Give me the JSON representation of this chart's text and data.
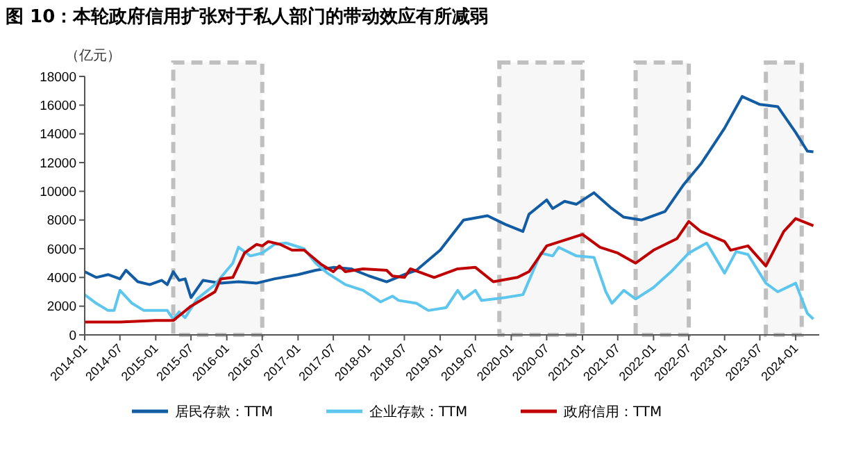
{
  "chart_data": {
    "type": "line",
    "title": "图 10：本轮政府信用扩张对于私人部门的带动效应有所减弱",
    "ylabel": "（亿元）",
    "xlim": [
      "2014-01",
      "2024-05"
    ],
    "xticks": [
      "2014-01",
      "2014-07",
      "2015-01",
      "2015-07",
      "2016-01",
      "2016-07",
      "2017-01",
      "2017-07",
      "2018-01",
      "2018-07",
      "2019-01",
      "2019-07",
      "2020-01",
      "2020-07",
      "2021-01",
      "2021-07",
      "2022-01",
      "2022-07",
      "2023-01",
      "2023-07",
      "2024-01"
    ],
    "ylim": [
      0,
      18000
    ],
    "yticks": [
      0,
      2000,
      4000,
      6000,
      8000,
      10000,
      12000,
      14000,
      16000,
      18000
    ],
    "grid": false,
    "legend": "bottom",
    "bands": [
      {
        "axis": "x",
        "from": "2015-04",
        "to": "2016-07",
        "color": "#bfbfbf"
      },
      {
        "axis": "x",
        "from": "2019-11",
        "to": "2021-01",
        "color": "#bfbfbf"
      },
      {
        "axis": "x",
        "from": "2021-10",
        "to": "2022-07",
        "color": "#bfbfbf"
      },
      {
        "axis": "x",
        "from": "2023-08",
        "to": "2024-02",
        "color": "#bfbfbf"
      }
    ],
    "series": [
      {
        "name": "居民存款：TTM",
        "color": "#125ca4",
        "x": [
          "2014-01",
          "2014-03",
          "2014-05",
          "2014-07",
          "2014-08",
          "2014-10",
          "2014-12",
          "2015-02",
          "2015-03",
          "2015-04",
          "2015-05",
          "2015-06",
          "2015-07",
          "2015-09",
          "2015-12",
          "2016-03",
          "2016-06",
          "2016-09",
          "2017-01",
          "2017-04",
          "2017-07",
          "2017-10",
          "2018-01",
          "2018-04",
          "2018-07",
          "2018-09",
          "2019-01",
          "2019-05",
          "2019-09",
          "2019-12",
          "2020-03",
          "2020-04",
          "2020-07",
          "2020-08",
          "2020-10",
          "2020-12",
          "2021-03",
          "2021-06",
          "2021-08",
          "2021-11",
          "2022-03",
          "2022-06",
          "2022-07",
          "2022-09",
          "2023-01",
          "2023-04",
          "2023-07",
          "2023-10",
          "2024-01",
          "2024-03",
          "2024-04"
        ],
        "values": [
          4400,
          4000,
          4200,
          3900,
          4500,
          3700,
          3500,
          3800,
          3500,
          4400,
          3800,
          3900,
          2600,
          3800,
          3600,
          3700,
          3600,
          3900,
          4200,
          4500,
          4700,
          4600,
          4100,
          3700,
          4200,
          4500,
          5900,
          8000,
          8300,
          7700,
          7200,
          8400,
          9400,
          8800,
          9300,
          9100,
          9900,
          8800,
          8200,
          8000,
          8600,
          10400,
          10900,
          11900,
          14400,
          16600,
          16050,
          15900,
          14100,
          12800,
          12750
        ]
      },
      {
        "name": "企业存款：TTM",
        "color": "#5cc6ee",
        "x": [
          "2014-01",
          "2014-03",
          "2014-05",
          "2014-06",
          "2014-07",
          "2014-09",
          "2014-11",
          "2015-03",
          "2015-04",
          "2015-05",
          "2015-06",
          "2015-08",
          "2015-11",
          "2016-01",
          "2016-02",
          "2016-03",
          "2016-05",
          "2016-07",
          "2016-09",
          "2016-11",
          "2017-02",
          "2017-04",
          "2017-06",
          "2017-09",
          "2017-12",
          "2018-03",
          "2018-05",
          "2018-06",
          "2018-09",
          "2018-11",
          "2019-02",
          "2019-04",
          "2019-05",
          "2019-07",
          "2019-08",
          "2019-12",
          "2020-03",
          "2020-06",
          "2020-08",
          "2020-09",
          "2020-12",
          "2021-03",
          "2021-05",
          "2021-06",
          "2021-08",
          "2021-10",
          "2022-01",
          "2022-04",
          "2022-07",
          "2022-10",
          "2023-01",
          "2023-03",
          "2023-05",
          "2023-08",
          "2023-10",
          "2024-01",
          "2024-03",
          "2024-04"
        ],
        "values": [
          2800,
          2200,
          1700,
          1700,
          3100,
          2200,
          1700,
          1700,
          1100,
          1600,
          1200,
          2500,
          3500,
          4500,
          5000,
          6100,
          5500,
          5700,
          6300,
          6400,
          6000,
          5000,
          4300,
          3500,
          3100,
          2300,
          2700,
          2400,
          2200,
          1700,
          1900,
          3100,
          2500,
          3100,
          2400,
          2600,
          2800,
          5700,
          5500,
          6100,
          5500,
          5400,
          3000,
          2200,
          3100,
          2500,
          3300,
          4400,
          5700,
          6400,
          4300,
          5800,
          5600,
          3600,
          3000,
          3600,
          1500,
          1100
        ]
      },
      {
        "name": "政府信用：TTM",
        "color": "#c00000",
        "x": [
          "2014-01",
          "2014-07",
          "2015-01",
          "2015-04",
          "2015-07",
          "2015-11",
          "2015-12",
          "2016-02",
          "2016-04",
          "2016-06",
          "2016-07",
          "2016-08",
          "2016-10",
          "2016-12",
          "2017-02",
          "2017-05",
          "2017-07",
          "2017-08",
          "2017-09",
          "2017-12",
          "2018-04",
          "2018-05",
          "2018-07",
          "2018-08",
          "2018-10",
          "2018-12",
          "2019-04",
          "2019-07",
          "2019-10",
          "2020-02",
          "2020-04",
          "2020-07",
          "2021-01",
          "2021-04",
          "2021-07",
          "2021-10",
          "2022-01",
          "2022-05",
          "2022-07",
          "2022-09",
          "2023-01",
          "2023-02",
          "2023-05",
          "2023-08",
          "2023-11",
          "2024-01",
          "2024-04"
        ],
        "values": [
          900,
          900,
          1000,
          1000,
          2000,
          3000,
          3900,
          4000,
          5700,
          6300,
          6200,
          6500,
          6300,
          5900,
          5900,
          4900,
          4400,
          4800,
          4400,
          4600,
          4500,
          4100,
          4000,
          4600,
          4300,
          4000,
          4600,
          4700,
          3700,
          4000,
          4400,
          6200,
          7000,
          6100,
          5700,
          5000,
          5900,
          6700,
          7900,
          7200,
          6500,
          5900,
          6200,
          4800,
          7200,
          8100,
          7600
        ]
      }
    ]
  }
}
